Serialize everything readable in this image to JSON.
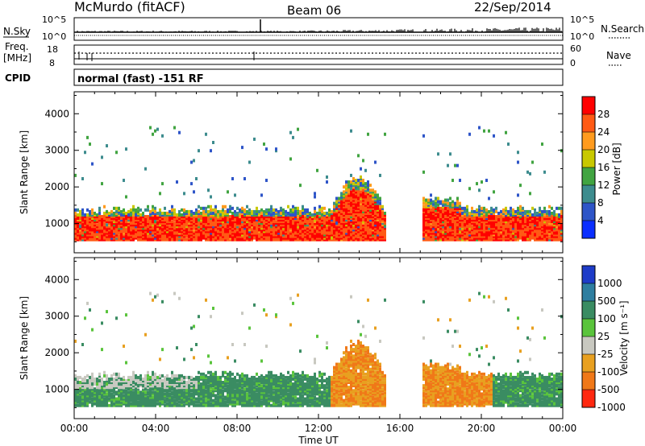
{
  "header": {
    "station": "McMurdo (fitACF)",
    "beam": "Beam 06",
    "date": "22/Sep/2014"
  },
  "strip_labels": {
    "nsky": "N.Sky",
    "freq": "Freq.",
    "freq_unit": "[MHz]",
    "cpid": "CPID",
    "nsearch": "N.Search",
    "nave": "Nave",
    "cpid_text": "normal (fast) -151 RF",
    "n_top": "10^5",
    "n_bottom": "10^0",
    "freq_top": "18",
    "freq_bottom": "8",
    "nave_top": "60",
    "nave_bottom": "0"
  },
  "colors": {
    "power": [
      "#0a2eff",
      "#2e55c8",
      "#3d8c8e",
      "#41a441",
      "#c8c800",
      "#ff9b1e",
      "#ff5a14",
      "#ff0000"
    ],
    "velocity": [
      "#1e3cc8",
      "#2e7ea0",
      "#3a8c62",
      "#5ac43c",
      "#c8c8c0",
      "#e8a020",
      "#f07818",
      "#ff2810"
    ]
  },
  "chart_data": [
    {
      "type": "heatmap",
      "name": "power",
      "ylabel": "Slant Range [km]",
      "y_ticks": [
        "1000",
        "2000",
        "3000",
        "4000"
      ],
      "ylim": [
        200,
        4600
      ],
      "colorbar_label": "Power [dB]",
      "colorbar_ticks": [
        "4",
        "8",
        "12",
        "16",
        "20",
        "24",
        "28"
      ],
      "colorbar_range": [
        0,
        32
      ]
    },
    {
      "type": "heatmap",
      "name": "velocity",
      "ylabel": "Slant Range [km]",
      "y_ticks": [
        "1000",
        "2000",
        "3000",
        "4000"
      ],
      "ylim": [
        200,
        4600
      ],
      "colorbar_label": "Velocity [m s⁻¹]",
      "colorbar_ticks": [
        "1000",
        "500",
        "100",
        "25",
        "-25",
        "-100",
        "-500",
        "-1000"
      ]
    }
  ],
  "x_axis": {
    "label": "Time UT",
    "ticks": [
      "00:00",
      "04:00",
      "08:00",
      "12:00",
      "16:00",
      "20:00",
      "00:00"
    ]
  }
}
